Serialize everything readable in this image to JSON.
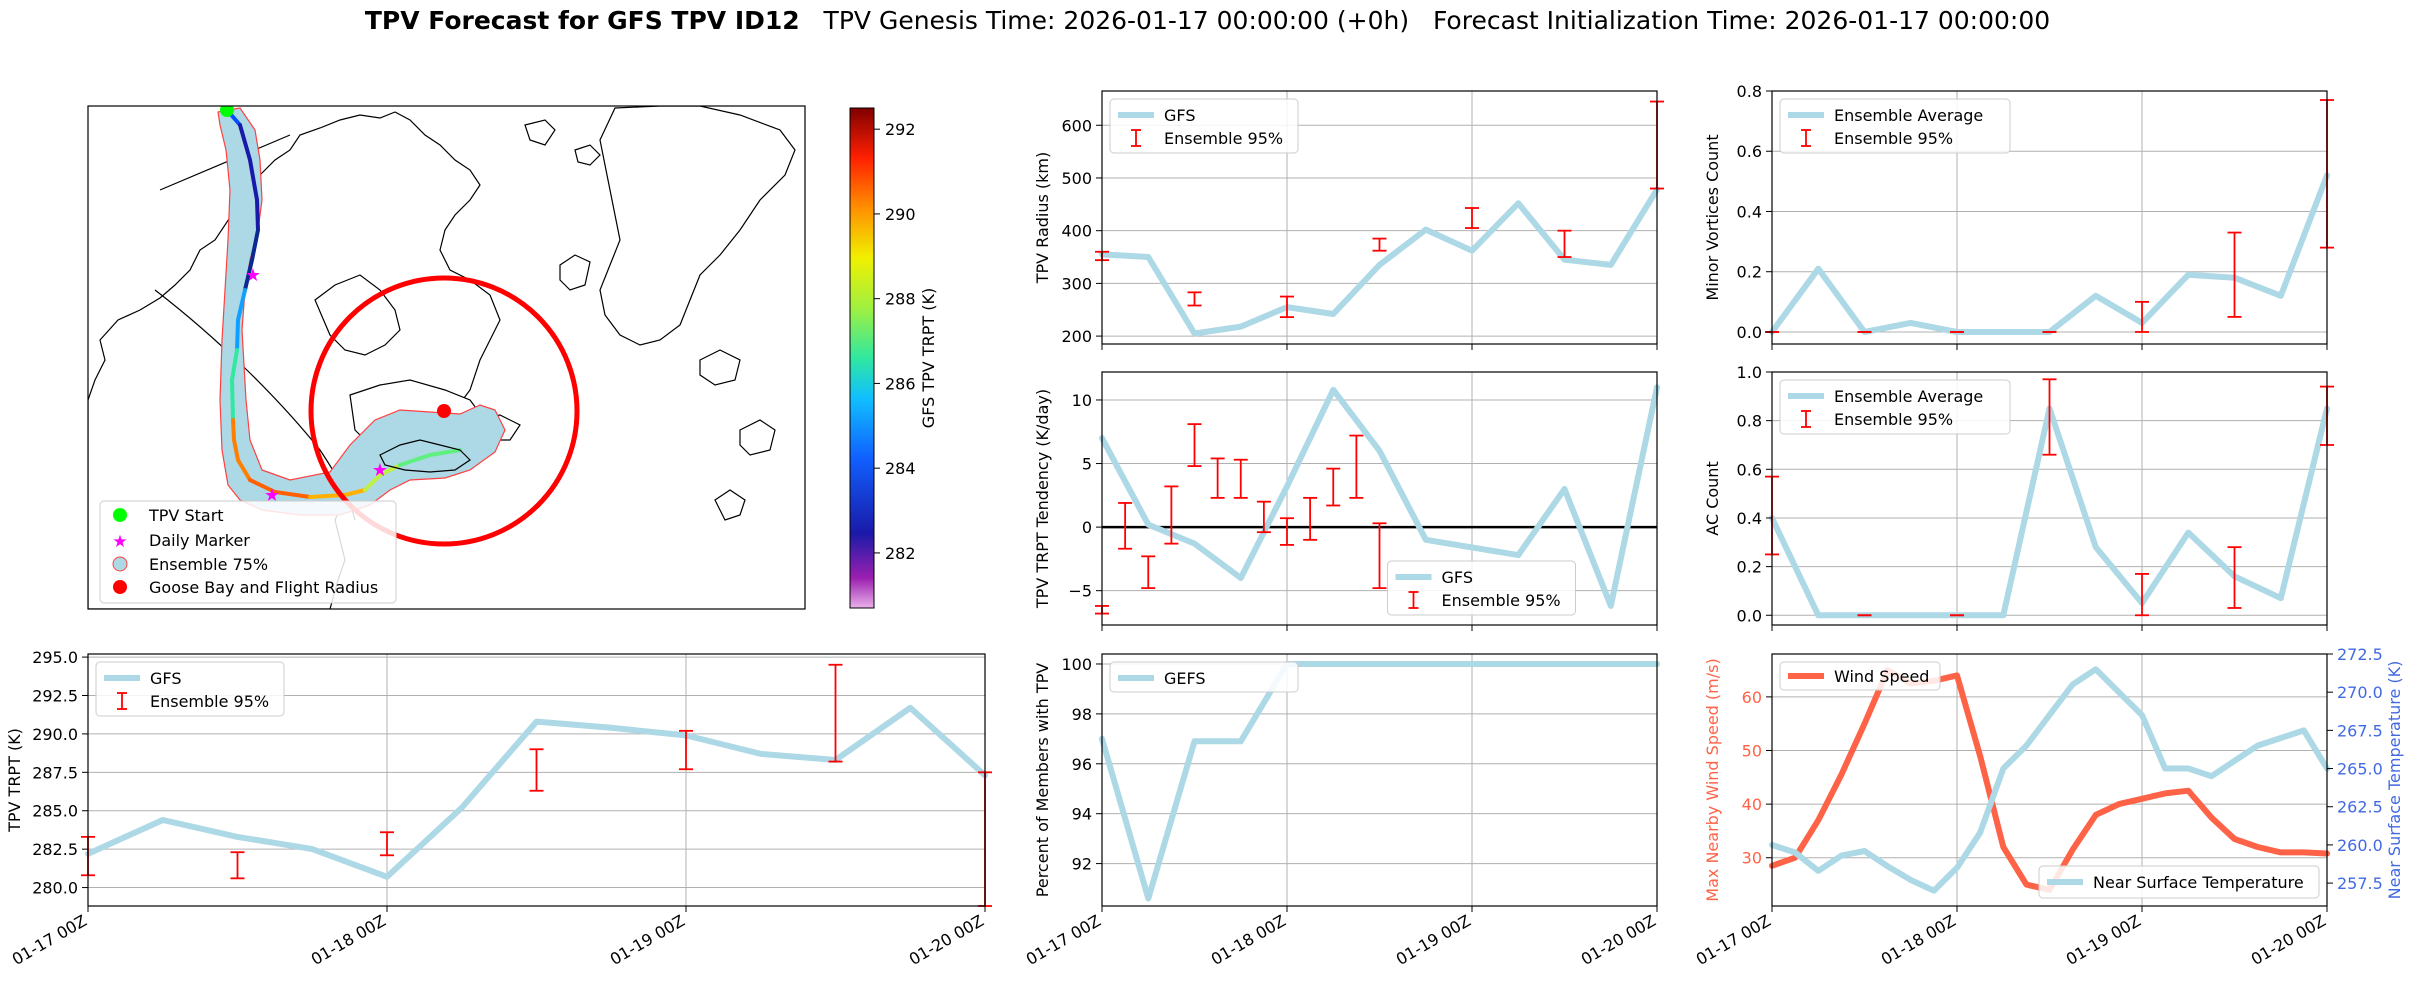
{
  "figure": {
    "title_bold": "TPV Forecast for GFS TPV ID12",
    "genesis": "TPV Genesis Time: 2026-01-17 00:00:00 (+0h)",
    "init": "Forecast Initialization Time: 2026-01-17 00:00:00"
  },
  "colors": {
    "gfs": "#add8e6",
    "err": "#ff0000",
    "wind": "#ff6347",
    "temp_axis": "#4169e1"
  },
  "x_ticks": [
    "01-17 00Z",
    "01-18 00Z",
    "01-19 00Z",
    "01-20 00Z"
  ],
  "map": {
    "colorbar_label": "GFS TPV TRPT (K)",
    "colorbar_ticks": [
      282,
      284,
      286,
      288,
      290,
      292
    ],
    "colorbar_range": [
      280.7,
      292.5
    ],
    "legend": [
      "TPV Start",
      "Daily Marker",
      "Ensemble 75%",
      "Goose Bay and Flight Radius"
    ]
  },
  "chart_data": [
    {
      "id": "trpt",
      "type": "line",
      "ylabel": "TPV TRPT (K)",
      "ylim": [
        278.8,
        295.2
      ],
      "yticks": [
        280.0,
        282.5,
        285.0,
        287.5,
        290.0,
        292.5,
        295.0
      ],
      "ytick_labels": [
        "280.0",
        "282.5",
        "285.0",
        "287.5",
        "290.0",
        "292.5",
        "295.0"
      ],
      "series": [
        {
          "name": "GFS",
          "x": [
            0,
            9,
            18,
            27,
            36,
            45,
            54,
            63,
            72
          ],
          "y": [
            282.2,
            284.4,
            283.3,
            282.5,
            280.7,
            285.2,
            290.8,
            290.4,
            289.9
          ]
        },
        {
          "name": "GFS",
          "x": [
            72,
            81,
            90,
            99,
            108
          ],
          "y": [
            289.9,
            288.7,
            288.3,
            291.7,
            287.3
          ]
        }
      ],
      "errorbars": {
        "name": "Ensemble 95%",
        "x": [
          0,
          18,
          36,
          54,
          72,
          90,
          108
        ],
        "lo": [
          280.8,
          280.6,
          282.1,
          286.3,
          287.7,
          288.2,
          278.8
        ],
        "hi": [
          283.3,
          282.3,
          283.6,
          289.0,
          290.2,
          294.5,
          287.5
        ]
      },
      "legend": [
        "GFS",
        "Ensemble 95%"
      ],
      "legend_loc": "upper left"
    },
    {
      "id": "radius",
      "type": "line",
      "ylabel": "TPV Radius (km)",
      "ylim": [
        185,
        665
      ],
      "yticks": [
        200,
        300,
        400,
        500,
        600
      ],
      "ytick_labels": [
        "200",
        "300",
        "400",
        "500",
        "600"
      ],
      "series": [
        {
          "name": "GFS",
          "x": [
            0,
            6,
            12,
            18,
            24,
            30,
            36,
            42,
            48,
            54,
            60,
            66,
            72
          ],
          "y": [
            355,
            350,
            205,
            218,
            255,
            242,
            335,
            402,
            362,
            452,
            345,
            335,
            478
          ]
        }
      ],
      "errorbars": {
        "name": "Ensemble 95%",
        "x": [
          0,
          12,
          24,
          36,
          48,
          60,
          72
        ],
        "lo": [
          344,
          258,
          236,
          362,
          405,
          350,
          480
        ],
        "hi": [
          360,
          283,
          275,
          385,
          443,
          400,
          645
        ]
      },
      "legend": [
        "GFS",
        "Ensemble 95%"
      ],
      "legend_loc": "upper left"
    },
    {
      "id": "minor",
      "type": "line",
      "ylabel": "Minor Vortices Count",
      "ylim": [
        -0.04,
        0.8
      ],
      "yticks": [
        0.0,
        0.2,
        0.4,
        0.6,
        0.8
      ],
      "ytick_labels": [
        "0.0",
        "0.2",
        "0.4",
        "0.6",
        "0.8"
      ],
      "series": [
        {
          "name": "Ensemble Average",
          "x": [
            0,
            6,
            12,
            18,
            24,
            30,
            36,
            42,
            48,
            54,
            60,
            66,
            72
          ],
          "y": [
            0.0,
            0.21,
            0.0,
            0.03,
            0.0,
            0.0,
            0.0,
            0.12,
            0.03,
            0.19,
            0.18,
            0.12,
            0.52
          ]
        }
      ],
      "errorbars": {
        "name": "Ensemble 95%",
        "x": [
          0,
          12,
          24,
          36,
          48,
          60,
          72
        ],
        "lo": [
          0,
          0,
          0,
          0,
          0,
          0.05,
          0.28
        ],
        "hi": [
          0,
          0,
          0,
          0,
          0.1,
          0.33,
          0.77
        ]
      },
      "legend": [
        "Ensemble Average",
        "Ensemble 95%"
      ],
      "legend_loc": "upper left"
    },
    {
      "id": "tend",
      "type": "line",
      "ylabel": "TPV TRPT Tendency (K/day)",
      "ylim": [
        -7.7,
        12.2
      ],
      "yticks": [
        -5,
        0,
        5,
        10
      ],
      "ytick_labels": [
        "−5",
        "0",
        "5",
        "10"
      ],
      "series": [
        {
          "name": "GFS",
          "x": [
            0,
            6,
            12,
            18,
            24,
            30,
            36,
            42,
            48,
            54,
            60,
            66,
            72
          ],
          "y": [
            7.0,
            0.2,
            -1.3,
            -4.0,
            3.2,
            10.8,
            6.0,
            -1.0,
            -1.6,
            -2.2,
            3.0,
            -6.2,
            11.0
          ]
        }
      ],
      "errorbars": {
        "name": "Ensemble 95%",
        "x": [
          0,
          3,
          6,
          9,
          12,
          15,
          18,
          21,
          24,
          27,
          30,
          33,
          36
        ],
        "lo": [
          -6.8,
          -1.7,
          -4.8,
          -1.3,
          4.8,
          2.3,
          2.3,
          -0.4,
          -1.4,
          -1.0,
          1.7,
          2.3,
          -4.8
        ],
        "hi": [
          -6.2,
          1.9,
          -2.3,
          3.2,
          8.1,
          5.4,
          5.3,
          2.0,
          0.7,
          2.3,
          4.6,
          7.2,
          0.3
        ]
      },
      "zero_line": true,
      "legend": [
        "GFS",
        "Ensemble 95%"
      ],
      "legend_loc": "lower center"
    },
    {
      "id": "ac",
      "type": "line",
      "ylabel": "AC Count",
      "ylim": [
        -0.04,
        1.0
      ],
      "yticks": [
        0.0,
        0.2,
        0.4,
        0.6,
        0.8,
        1.0
      ],
      "ytick_labels": [
        "0.0",
        "0.2",
        "0.4",
        "0.6",
        "0.8",
        "1.0"
      ],
      "series": [
        {
          "name": "Ensemble Average",
          "x": [
            0,
            6,
            12,
            18,
            24,
            30,
            36,
            42,
            48,
            54,
            60,
            66,
            72
          ],
          "y": [
            0.4,
            0.0,
            0.0,
            0.0,
            0.0,
            0.0,
            0.85,
            0.28,
            0.05,
            0.34,
            0.16,
            0.07,
            0.85
          ]
        }
      ],
      "errorbars": {
        "name": "Ensemble 95%",
        "x": [
          0,
          12,
          24,
          36,
          48,
          60,
          72
        ],
        "lo": [
          0.25,
          0,
          0,
          0.66,
          0,
          0.03,
          0.7
        ],
        "hi": [
          0.57,
          0,
          0,
          0.97,
          0.17,
          0.28,
          0.94
        ]
      },
      "legend": [
        "Ensemble Average",
        "Ensemble 95%"
      ],
      "legend_loc": "upper left"
    },
    {
      "id": "members",
      "type": "line",
      "ylabel": "Percent of Members with TPV",
      "ylim": [
        90.3,
        100.4
      ],
      "yticks": [
        92,
        94,
        96,
        98,
        100
      ],
      "ytick_labels": [
        "92",
        "94",
        "96",
        "98",
        "100"
      ],
      "series": [
        {
          "name": "GEFS",
          "x": [
            0,
            6,
            12,
            18,
            24,
            30,
            36,
            42,
            48,
            54,
            60,
            66,
            72
          ],
          "y": [
            97.0,
            90.6,
            96.9,
            96.9,
            100,
            100,
            100,
            100,
            100,
            100,
            100,
            100,
            100
          ]
        }
      ],
      "legend": [
        "GEFS"
      ],
      "legend_loc": "upper left"
    },
    {
      "id": "wind",
      "type": "line",
      "ylabel": "Max Nearby Wind Speed (m/s)",
      "ylabel2": "Near Surface Temperature (K)",
      "ylim": [
        21,
        68
      ],
      "yticks": [
        30,
        40,
        50,
        60
      ],
      "ytick_labels": [
        "30",
        "40",
        "50",
        "60"
      ],
      "ylim2": [
        256,
        272.5
      ],
      "yticks2": [
        257.5,
        260.0,
        262.5,
        265.0,
        267.5,
        270.0,
        272.5
      ],
      "ytick_labels2": [
        "257.5",
        "260.0",
        "262.5",
        "265.0",
        "267.5",
        "270.0",
        "272.5"
      ],
      "series": [
        {
          "name": "Wind Speed",
          "axis": "left",
          "x": [
            0,
            3,
            6,
            9,
            12,
            15,
            18,
            21,
            24,
            27,
            30,
            33,
            36,
            39,
            42,
            45,
            48,
            51,
            54,
            57,
            60,
            63,
            66,
            69,
            72
          ],
          "y": [
            28.5,
            30.0,
            37.0,
            45.5,
            55.0,
            65.0,
            62.5,
            63.0,
            64.0,
            49.0,
            32.0,
            25.0,
            24.0,
            31.5,
            38.0,
            40.0,
            41.0,
            42.0,
            42.5,
            37.5,
            33.5,
            32.0,
            31.0,
            31.0,
            30.8
          ]
        },
        {
          "name": "Near Surface Temperature",
          "axis": "right",
          "x": [
            0,
            3,
            6,
            9,
            12,
            15,
            18,
            21,
            24,
            27,
            30,
            33,
            36,
            39,
            42,
            45,
            48,
            51,
            54,
            57,
            60,
            63,
            66,
            69,
            72
          ],
          "y": [
            260.0,
            259.5,
            258.3,
            259.3,
            259.6,
            258.6,
            257.7,
            257.0,
            258.5,
            260.8,
            265.0,
            266.5,
            268.5,
            270.5,
            271.5,
            270.0,
            268.5,
            265.0,
            265.0,
            264.5,
            265.5,
            266.5,
            267.0,
            267.5,
            265.0
          ]
        }
      ],
      "legend": [
        "Wind Speed",
        "Near Surface Temperature"
      ]
    }
  ]
}
